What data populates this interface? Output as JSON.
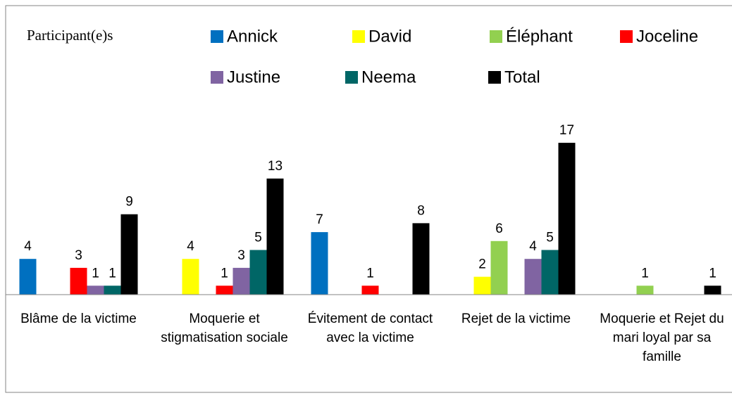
{
  "chart_data": {
    "type": "bar",
    "legend_title": "Participant(e)s",
    "categories": [
      "Blâme de la victime",
      "Moquerie et stigmatisation sociale",
      "Évitement de contact avec la victime",
      "Rejet de la victime",
      "Moquerie et Rejet du mari loyal par sa famille"
    ],
    "series": [
      {
        "name": "Annick",
        "color": "#0070c0",
        "values": [
          4,
          null,
          7,
          null,
          null
        ]
      },
      {
        "name": "David",
        "color": "#ffff00",
        "values": [
          null,
          4,
          null,
          2,
          null
        ]
      },
      {
        "name": "Éléphant",
        "color": "#92d050",
        "values": [
          null,
          null,
          null,
          6,
          1
        ]
      },
      {
        "name": "Joceline",
        "color": "#ff0000",
        "values": [
          3,
          1,
          1,
          null,
          null
        ]
      },
      {
        "name": "Justine",
        "color": "#8064a2",
        "values": [
          1,
          3,
          null,
          4,
          null
        ]
      },
      {
        "name": "Neema",
        "color": "#006666",
        "values": [
          1,
          5,
          null,
          5,
          null
        ]
      },
      {
        "name": "Total",
        "color": "#000000",
        "values": [
          9,
          13,
          8,
          17,
          1
        ]
      }
    ],
    "ylim": [
      0,
      20
    ]
  }
}
